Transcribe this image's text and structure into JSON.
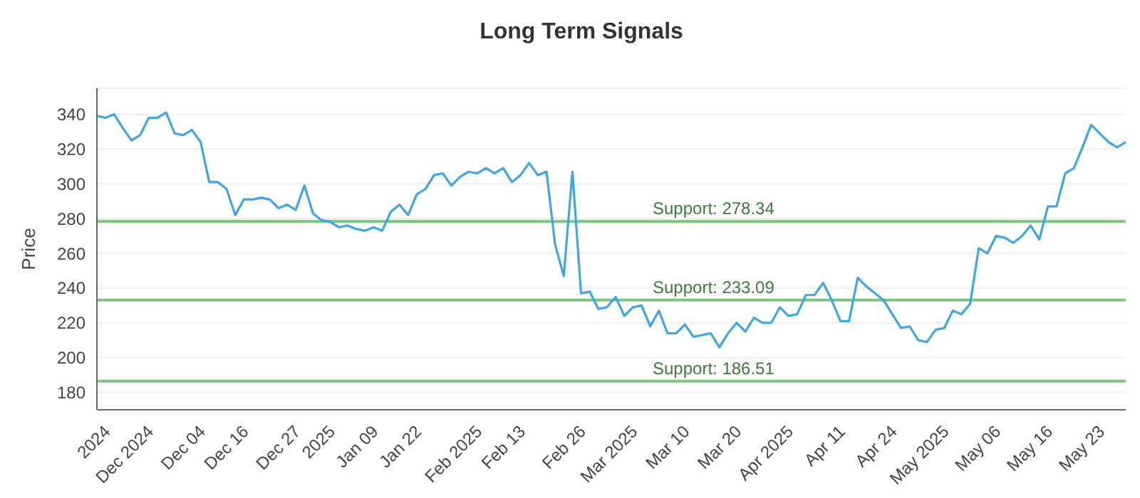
{
  "chart_data": {
    "type": "line",
    "title": "Long Term Signals",
    "ylabel": "Price",
    "categories": [
      null,
      "2024",
      null,
      null,
      null,
      null,
      "Dec 2024",
      null,
      null,
      null,
      null,
      null,
      "Dec 04",
      null,
      null,
      null,
      null,
      "Dec 16",
      null,
      null,
      null,
      null,
      null,
      "Dec 27",
      null,
      null,
      null,
      "2025",
      null,
      null,
      null,
      null,
      "Jan 09",
      null,
      null,
      null,
      null,
      "Jan 22",
      null,
      null,
      null,
      null,
      null,
      null,
      "Feb 2025",
      null,
      null,
      null,
      null,
      "Feb 13",
      null,
      null,
      null,
      null,
      null,
      null,
      "Feb 26",
      null,
      null,
      null,
      null,
      null,
      "Mar 2025",
      null,
      null,
      null,
      null,
      null,
      "Mar 10",
      null,
      null,
      null,
      null,
      null,
      "Mar 20",
      null,
      null,
      null,
      null,
      null,
      "Apr 2025",
      null,
      null,
      null,
      null,
      null,
      "Apr 11",
      null,
      null,
      null,
      null,
      null,
      "Apr 24",
      null,
      null,
      null,
      null,
      null,
      "May 2025",
      null,
      null,
      null,
      null,
      null,
      "May 06",
      null,
      null,
      null,
      null,
      null,
      "May 16",
      null,
      null,
      null,
      null,
      null,
      "May 23",
      null,
      null,
      null
    ],
    "series": [
      {
        "color": "#3ea6e6",
        "values": [
          339,
          338,
          340,
          332,
          325,
          328,
          338,
          338,
          341,
          329,
          328,
          331,
          324,
          301,
          301,
          297,
          282,
          291,
          291,
          292,
          291,
          286,
          288,
          285,
          299,
          283,
          279,
          278,
          275,
          276,
          274,
          273,
          275,
          273,
          284,
          288,
          282,
          294,
          297,
          305,
          306,
          299,
          304,
          307,
          306,
          309,
          306,
          309,
          301,
          305,
          312,
          305,
          307,
          265,
          247,
          307,
          237,
          238,
          228,
          229,
          235,
          224,
          229,
          230,
          218,
          227,
          214,
          214,
          219,
          212,
          213,
          214,
          206,
          214,
          220,
          215,
          223,
          220,
          220,
          229,
          224,
          225,
          236,
          236,
          243,
          233,
          221,
          221,
          246,
          241,
          237,
          233,
          225,
          217,
          218,
          210,
          209,
          216,
          217,
          227,
          225,
          231,
          263,
          260,
          270,
          269,
          266,
          270,
          276,
          268,
          287,
          287,
          306,
          309,
          321,
          334,
          329,
          324,
          321,
          324
        ]
      }
    ],
    "ylim": [
      170,
      355
    ],
    "yticks": [
      180,
      200,
      220,
      240,
      260,
      280,
      300,
      320,
      340
    ],
    "grid": "y",
    "marker": "none",
    "line_style": "solid",
    "ref_lines": [
      {
        "axis": "y",
        "value": 278.34,
        "label": "Support: 278.34",
        "color": "#7cc47c"
      },
      {
        "axis": "y",
        "value": 233.09,
        "label": "Support: 233.09",
        "color": "#7cc47c"
      },
      {
        "axis": "y",
        "value": 186.51,
        "label": "Support: 186.51",
        "color": "#7cc47c"
      }
    ]
  }
}
